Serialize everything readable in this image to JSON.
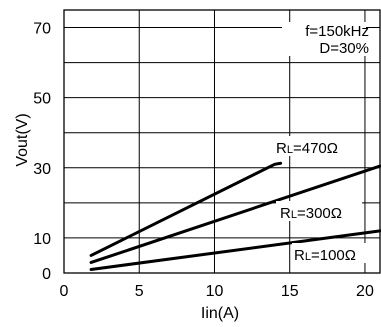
{
  "chart_data": {
    "type": "line",
    "xlabel": "Iin(A)",
    "ylabel": "Vout(V)",
    "xlim": [
      0,
      21
    ],
    "ylim": [
      0,
      75
    ],
    "x_ticks": [
      "0",
      "5",
      "10",
      "15",
      "20"
    ],
    "y_ticks": [
      "0",
      "10",
      "30",
      "50",
      "70"
    ],
    "grid": true,
    "annotation_lines": [
      "f=150kHz",
      "D=30%"
    ],
    "series": [
      {
        "label_prefix": "R",
        "label_sub": "L",
        "label_suffix": "=470Ω",
        "x": [
          1.8,
          14.0,
          14.4
        ],
        "y": [
          5.0,
          31.0,
          31.3
        ]
      },
      {
        "label_prefix": "R",
        "label_sub": "L",
        "label_suffix": "=300Ω",
        "x": [
          1.8,
          21.0
        ],
        "y": [
          3.0,
          30.5
        ]
      },
      {
        "label_prefix": "R",
        "label_sub": "L",
        "label_suffix": "=100Ω",
        "x": [
          1.8,
          21.0
        ],
        "y": [
          1.0,
          12.0
        ]
      }
    ]
  }
}
